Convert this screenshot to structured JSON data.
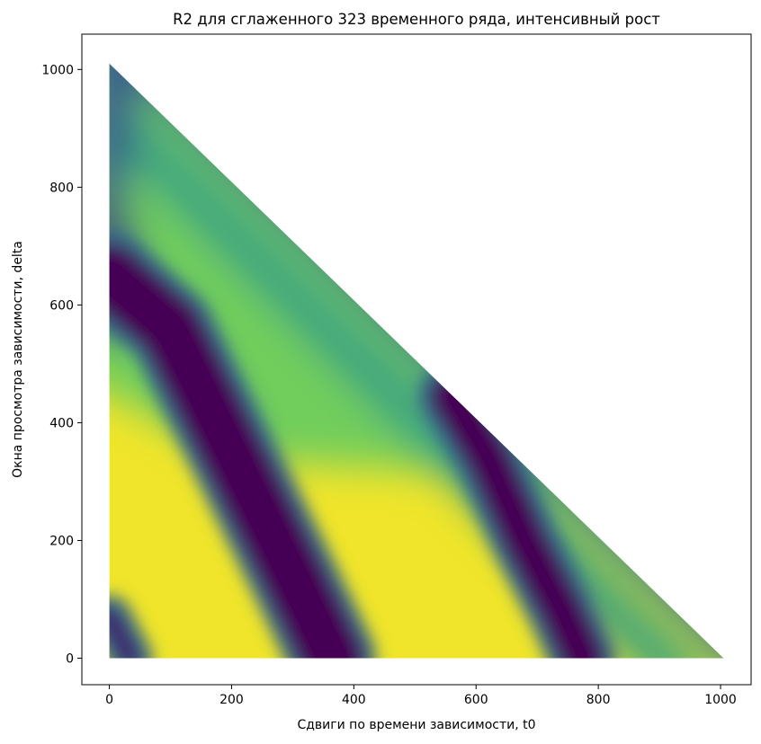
{
  "chart_data": {
    "type": "heatmap",
    "title": "R2 для сглаженного 323 временного ряда, интенсивный рост",
    "xlabel": "Сдвиги по времени зависимости, t0",
    "ylabel": "Окна просмотра зависимости, delta",
    "xlim": [
      -45,
      1050
    ],
    "ylim": [
      -45,
      1060
    ],
    "x_ticks": [
      0,
      200,
      400,
      600,
      800,
      1000
    ],
    "y_ticks": [
      0,
      200,
      400,
      600,
      800,
      1000
    ],
    "x_tick_labels": [
      "0",
      "200",
      "400",
      "600",
      "800",
      "1000"
    ],
    "y_tick_labels": [
      "0",
      "200",
      "400",
      "600",
      "800",
      "1000"
    ],
    "domain": {
      "shape": "triangle",
      "vertices": [
        [
          0,
          0
        ],
        [
          1005,
          0
        ],
        [
          0,
          1010
        ]
      ],
      "constraint": "t0 + delta <= 1010"
    },
    "colormap": "viridis",
    "value_range": [
      0,
      1
    ],
    "colormap_stops": [
      "#440154",
      "#3b528b",
      "#21918c",
      "#5ec962",
      "#fde725"
    ],
    "grid": false,
    "legend": "none",
    "low_value_bands": [
      {
        "name": "",
        "points": [
          [
            0,
            650
          ],
          [
            100,
            560
          ],
          [
            200,
            350
          ],
          [
            300,
            140
          ],
          [
            365,
            0
          ]
        ],
        "min_value": 0.0
      },
      {
        "name": "",
        "points": [
          [
            560,
            445
          ],
          [
            620,
            340
          ],
          [
            680,
            200
          ],
          [
            740,
            80
          ],
          [
            775,
            0
          ]
        ],
        "min_value": 0.0
      },
      {
        "name": "",
        "points": [
          [
            0,
            70
          ],
          [
            20,
            30
          ],
          [
            35,
            0
          ]
        ],
        "min_value": 0.1
      }
    ],
    "high_value_region": {
      "description": "",
      "max_delta_at_t0_0": 480,
      "value": 0.98
    },
    "upper_diagonal_edge_value": 0.3
  }
}
